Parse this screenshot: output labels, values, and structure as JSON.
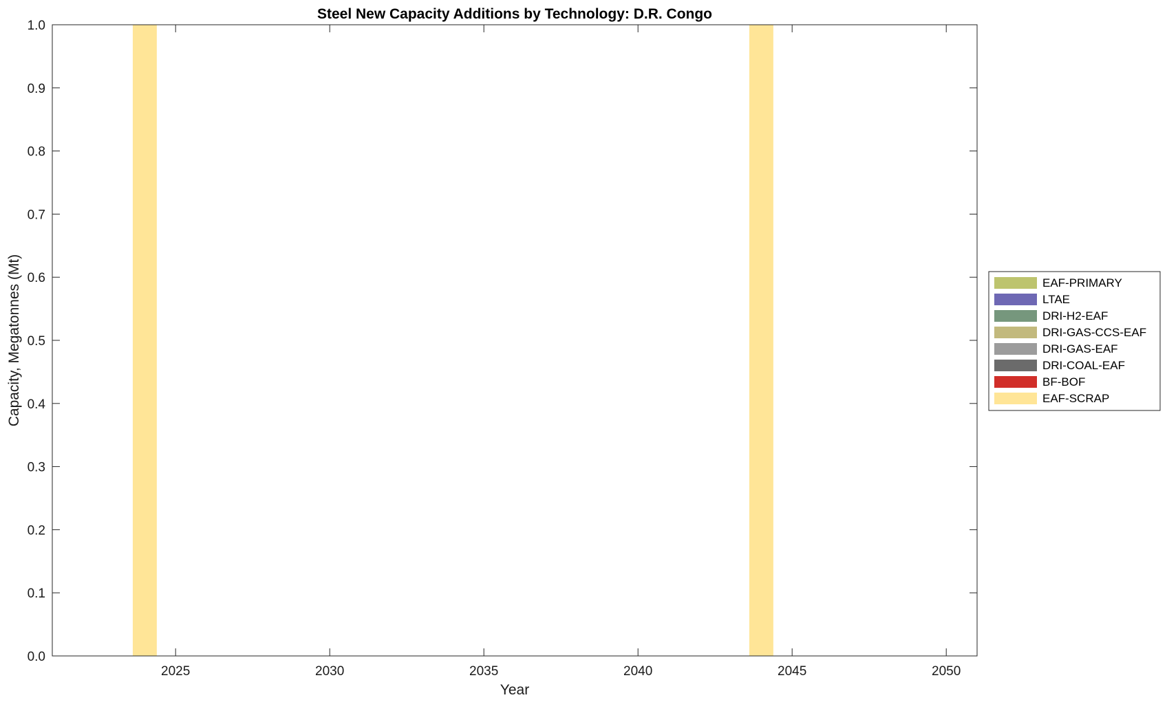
{
  "chart_data": {
    "type": "bar",
    "stacked": true,
    "title": "Steel New Capacity Additions by Technology: D.R. Congo",
    "xlabel": "Year",
    "ylabel": "Capacity, Megatonnes (Mt)",
    "xlim": [
      2021,
      2051
    ],
    "ylim": [
      0,
      1
    ],
    "xticks": [
      2025,
      2030,
      2035,
      2040,
      2045,
      2050
    ],
    "yticks": [
      "0.0",
      "0.1",
      "0.2",
      "0.3",
      "0.4",
      "0.5",
      "0.6",
      "0.7",
      "0.8",
      "0.9",
      "1.0"
    ],
    "grid": false,
    "legend_position": "outside-right",
    "series": [
      {
        "name": "EAF-PRIMARY",
        "color": "#bdc46e",
        "points": []
      },
      {
        "name": "LTAE",
        "color": "#6e68b4",
        "points": []
      },
      {
        "name": "DRI-H2-EAF",
        "color": "#76977d",
        "points": []
      },
      {
        "name": "DRI-GAS-CCS-EAF",
        "color": "#c2b97d",
        "points": []
      },
      {
        "name": "DRI-GAS-EAF",
        "color": "#9c9c9c",
        "points": []
      },
      {
        "name": "DRI-COAL-EAF",
        "color": "#6b6b6b",
        "points": []
      },
      {
        "name": "BF-BOF",
        "color": "#d12e29",
        "points": []
      },
      {
        "name": "EAF-SCRAP",
        "color": "#ffe597",
        "points": [
          {
            "x": 2024,
            "y": 1.0
          },
          {
            "x": 2044,
            "y": 1.0
          }
        ]
      }
    ]
  }
}
